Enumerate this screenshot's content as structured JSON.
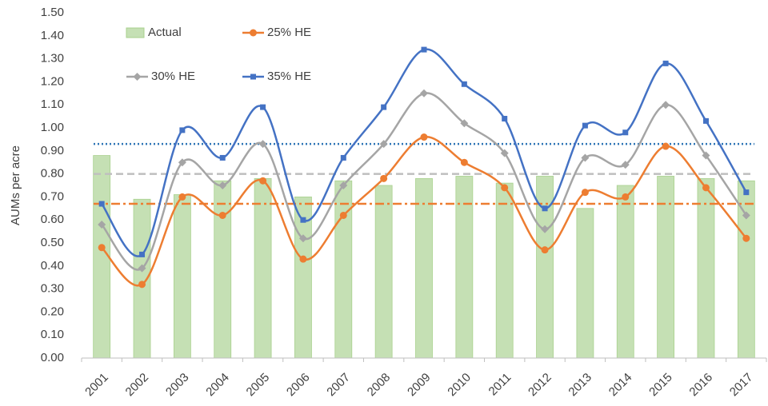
{
  "chart_data": {
    "type": "combo",
    "y_label": "AUMs per acre",
    "categories": [
      "2001",
      "2002",
      "2003",
      "2004",
      "2005",
      "2006",
      "2007",
      "2008",
      "2009",
      "2010",
      "2011",
      "2012",
      "2013",
      "2014",
      "2015",
      "2016",
      "2017"
    ],
    "series": [
      {
        "name": "Actual",
        "type": "bar",
        "color": "#c5e0b4",
        "values": [
          0.88,
          0.69,
          0.71,
          0.77,
          0.78,
          0.7,
          0.77,
          0.75,
          0.78,
          0.79,
          0.76,
          0.79,
          0.65,
          0.75,
          0.79,
          0.78,
          0.77
        ]
      },
      {
        "name": "25% HE",
        "type": "line",
        "marker": "circle",
        "color": "#ed7d31",
        "values": [
          0.48,
          0.32,
          0.7,
          0.62,
          0.77,
          0.43,
          0.62,
          0.78,
          0.96,
          0.85,
          0.74,
          0.47,
          0.72,
          0.7,
          0.92,
          0.74,
          0.52
        ]
      },
      {
        "name": "30% HE",
        "type": "line",
        "marker": "diamond",
        "color": "#a5a5a5",
        "values": [
          0.58,
          0.39,
          0.85,
          0.75,
          0.93,
          0.52,
          0.75,
          0.93,
          1.15,
          1.02,
          0.89,
          0.56,
          0.87,
          0.84,
          1.1,
          0.88,
          0.62
        ]
      },
      {
        "name": "35% HE",
        "type": "line",
        "marker": "square",
        "color": "#4472c4",
        "values": [
          0.67,
          0.45,
          0.99,
          0.87,
          1.09,
          0.6,
          0.87,
          1.09,
          1.34,
          1.19,
          1.04,
          0.65,
          1.01,
          0.98,
          1.28,
          1.03,
          0.72
        ]
      }
    ],
    "reference_lines": [
      {
        "value": 0.93,
        "color": "#2e75b6",
        "dash": "dotted"
      },
      {
        "value": 0.8,
        "color": "#bfbfbf",
        "dash": "dashed"
      },
      {
        "value": 0.67,
        "color": "#ed7d31",
        "dash": "dashdot"
      }
    ],
    "ylim": [
      0,
      1.5
    ],
    "yticks": [
      {
        "value": 0,
        "label": "0.00"
      },
      {
        "value": 0.1,
        "label": "0.10"
      },
      {
        "value": 0.2,
        "label": "0.20"
      },
      {
        "value": 0.3,
        "label": "0.30"
      },
      {
        "value": 0.4,
        "label": "0.40"
      },
      {
        "value": 0.5,
        "label": "0.50"
      },
      {
        "value": 0.6,
        "label": "0.60"
      },
      {
        "value": 0.7,
        "label": "0.70"
      },
      {
        "value": 0.8,
        "label": "0.80"
      },
      {
        "value": 0.9,
        "label": "0.90"
      },
      {
        "value": 1.0,
        "label": "1.00"
      },
      {
        "value": 1.1,
        "label": "1.10"
      },
      {
        "value": 1.2,
        "label": "1.20"
      },
      {
        "value": 1.3,
        "label": "1.30"
      },
      {
        "value": 1.4,
        "label": "1.40"
      },
      {
        "value": 1.5,
        "label": "1.50"
      }
    ],
    "grid": false,
    "legend": "top-left"
  }
}
